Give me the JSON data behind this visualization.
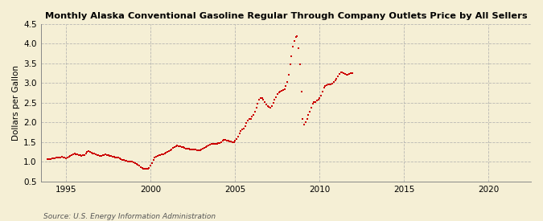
{
  "title": "Monthly Alaska Conventional Gasoline Regular Through Company Outlets Price by All Sellers",
  "ylabel": "Dollars per Gallon",
  "source": "Source: U.S. Energy Information Administration",
  "xlim": [
    1993.5,
    2022.5
  ],
  "ylim": [
    0.5,
    4.5
  ],
  "yticks": [
    0.5,
    1.0,
    1.5,
    2.0,
    2.5,
    3.0,
    3.5,
    4.0,
    4.5
  ],
  "xticks": [
    1995,
    2000,
    2005,
    2010,
    2015,
    2020
  ],
  "line_color": "#cc0000",
  "bg_color": "#f5efd5",
  "grid_color": "#aaaaaa",
  "data": [
    [
      1993.917,
      1.07
    ],
    [
      1994.0,
      1.07
    ],
    [
      1994.083,
      1.07
    ],
    [
      1994.167,
      1.08
    ],
    [
      1994.25,
      1.08
    ],
    [
      1994.333,
      1.09
    ],
    [
      1994.417,
      1.1
    ],
    [
      1994.5,
      1.1
    ],
    [
      1994.583,
      1.11
    ],
    [
      1994.667,
      1.12
    ],
    [
      1994.75,
      1.13
    ],
    [
      1994.833,
      1.12
    ],
    [
      1994.917,
      1.1
    ],
    [
      1995.0,
      1.09
    ],
    [
      1995.083,
      1.1
    ],
    [
      1995.167,
      1.13
    ],
    [
      1995.25,
      1.16
    ],
    [
      1995.333,
      1.18
    ],
    [
      1995.417,
      1.2
    ],
    [
      1995.5,
      1.21
    ],
    [
      1995.583,
      1.2
    ],
    [
      1995.667,
      1.19
    ],
    [
      1995.75,
      1.18
    ],
    [
      1995.833,
      1.17
    ],
    [
      1995.917,
      1.16
    ],
    [
      1996.0,
      1.17
    ],
    [
      1996.083,
      1.18
    ],
    [
      1996.167,
      1.22
    ],
    [
      1996.25,
      1.25
    ],
    [
      1996.333,
      1.27
    ],
    [
      1996.417,
      1.26
    ],
    [
      1996.5,
      1.24
    ],
    [
      1996.583,
      1.22
    ],
    [
      1996.667,
      1.21
    ],
    [
      1996.75,
      1.2
    ],
    [
      1996.833,
      1.18
    ],
    [
      1996.917,
      1.17
    ],
    [
      1997.0,
      1.16
    ],
    [
      1997.083,
      1.16
    ],
    [
      1997.167,
      1.17
    ],
    [
      1997.25,
      1.18
    ],
    [
      1997.333,
      1.19
    ],
    [
      1997.417,
      1.18
    ],
    [
      1997.5,
      1.17
    ],
    [
      1997.583,
      1.16
    ],
    [
      1997.667,
      1.15
    ],
    [
      1997.75,
      1.14
    ],
    [
      1997.833,
      1.13
    ],
    [
      1997.917,
      1.12
    ],
    [
      1998.0,
      1.11
    ],
    [
      1998.083,
      1.1
    ],
    [
      1998.167,
      1.08
    ],
    [
      1998.25,
      1.07
    ],
    [
      1998.333,
      1.05
    ],
    [
      1998.417,
      1.04
    ],
    [
      1998.5,
      1.03
    ],
    [
      1998.583,
      1.02
    ],
    [
      1998.667,
      1.01
    ],
    [
      1998.75,
      1.0
    ],
    [
      1998.833,
      1.0
    ],
    [
      1998.917,
      1.0
    ],
    [
      1999.0,
      0.99
    ],
    [
      1999.083,
      0.97
    ],
    [
      1999.167,
      0.95
    ],
    [
      1999.25,
      0.93
    ],
    [
      1999.333,
      0.9
    ],
    [
      1999.417,
      0.87
    ],
    [
      1999.5,
      0.85
    ],
    [
      1999.583,
      0.83
    ],
    [
      1999.667,
      0.82
    ],
    [
      1999.75,
      0.82
    ],
    [
      1999.833,
      0.83
    ],
    [
      1999.917,
      0.85
    ],
    [
      2000.0,
      0.9
    ],
    [
      2000.083,
      0.97
    ],
    [
      2000.167,
      1.05
    ],
    [
      2000.25,
      1.1
    ],
    [
      2000.333,
      1.13
    ],
    [
      2000.417,
      1.15
    ],
    [
      2000.5,
      1.17
    ],
    [
      2000.583,
      1.18
    ],
    [
      2000.667,
      1.19
    ],
    [
      2000.75,
      1.2
    ],
    [
      2000.833,
      1.22
    ],
    [
      2000.917,
      1.24
    ],
    [
      2001.0,
      1.26
    ],
    [
      2001.083,
      1.28
    ],
    [
      2001.167,
      1.3
    ],
    [
      2001.25,
      1.32
    ],
    [
      2001.333,
      1.35
    ],
    [
      2001.417,
      1.38
    ],
    [
      2001.5,
      1.4
    ],
    [
      2001.583,
      1.41
    ],
    [
      2001.667,
      1.4
    ],
    [
      2001.75,
      1.39
    ],
    [
      2001.833,
      1.38
    ],
    [
      2001.917,
      1.37
    ],
    [
      2002.0,
      1.35
    ],
    [
      2002.083,
      1.34
    ],
    [
      2002.167,
      1.33
    ],
    [
      2002.25,
      1.33
    ],
    [
      2002.333,
      1.32
    ],
    [
      2002.417,
      1.32
    ],
    [
      2002.5,
      1.32
    ],
    [
      2002.583,
      1.31
    ],
    [
      2002.667,
      1.31
    ],
    [
      2002.75,
      1.3
    ],
    [
      2002.833,
      1.3
    ],
    [
      2002.917,
      1.3
    ],
    [
      2003.0,
      1.31
    ],
    [
      2003.083,
      1.33
    ],
    [
      2003.167,
      1.36
    ],
    [
      2003.25,
      1.38
    ],
    [
      2003.333,
      1.4
    ],
    [
      2003.417,
      1.42
    ],
    [
      2003.5,
      1.44
    ],
    [
      2003.583,
      1.45
    ],
    [
      2003.667,
      1.46
    ],
    [
      2003.75,
      1.46
    ],
    [
      2003.833,
      1.46
    ],
    [
      2003.917,
      1.46
    ],
    [
      2004.0,
      1.47
    ],
    [
      2004.083,
      1.48
    ],
    [
      2004.167,
      1.5
    ],
    [
      2004.25,
      1.53
    ],
    [
      2004.333,
      1.55
    ],
    [
      2004.417,
      1.55
    ],
    [
      2004.5,
      1.54
    ],
    [
      2004.583,
      1.53
    ],
    [
      2004.667,
      1.52
    ],
    [
      2004.75,
      1.51
    ],
    [
      2004.833,
      1.5
    ],
    [
      2004.917,
      1.5
    ],
    [
      2005.0,
      1.53
    ],
    [
      2005.083,
      1.58
    ],
    [
      2005.167,
      1.65
    ],
    [
      2005.25,
      1.72
    ],
    [
      2005.333,
      1.78
    ],
    [
      2005.417,
      1.82
    ],
    [
      2005.5,
      1.85
    ],
    [
      2005.583,
      1.9
    ],
    [
      2005.667,
      1.98
    ],
    [
      2005.75,
      2.05
    ],
    [
      2005.833,
      2.08
    ],
    [
      2005.917,
      2.1
    ],
    [
      2006.0,
      2.15
    ],
    [
      2006.083,
      2.2
    ],
    [
      2006.167,
      2.28
    ],
    [
      2006.25,
      2.38
    ],
    [
      2006.333,
      2.48
    ],
    [
      2006.417,
      2.57
    ],
    [
      2006.5,
      2.62
    ],
    [
      2006.583,
      2.63
    ],
    [
      2006.667,
      2.58
    ],
    [
      2006.75,
      2.52
    ],
    [
      2006.833,
      2.45
    ],
    [
      2006.917,
      2.42
    ],
    [
      2007.0,
      2.4
    ],
    [
      2007.083,
      2.38
    ],
    [
      2007.167,
      2.42
    ],
    [
      2007.25,
      2.5
    ],
    [
      2007.333,
      2.58
    ],
    [
      2007.417,
      2.65
    ],
    [
      2007.5,
      2.72
    ],
    [
      2007.583,
      2.76
    ],
    [
      2007.667,
      2.78
    ],
    [
      2007.75,
      2.8
    ],
    [
      2007.833,
      2.82
    ],
    [
      2007.917,
      2.85
    ],
    [
      2008.0,
      2.92
    ],
    [
      2008.083,
      3.02
    ],
    [
      2008.167,
      3.22
    ],
    [
      2008.25,
      3.48
    ],
    [
      2008.333,
      3.68
    ],
    [
      2008.417,
      3.92
    ],
    [
      2008.5,
      4.08
    ],
    [
      2008.583,
      4.17
    ],
    [
      2008.667,
      4.2
    ],
    [
      2008.75,
      3.88
    ],
    [
      2008.833,
      3.48
    ],
    [
      2008.917,
      2.78
    ],
    [
      2009.0,
      2.08
    ],
    [
      2009.083,
      1.95
    ],
    [
      2009.167,
      2.0
    ],
    [
      2009.25,
      2.1
    ],
    [
      2009.333,
      2.2
    ],
    [
      2009.417,
      2.28
    ],
    [
      2009.5,
      2.38
    ],
    [
      2009.583,
      2.48
    ],
    [
      2009.667,
      2.52
    ],
    [
      2009.75,
      2.52
    ],
    [
      2009.833,
      2.55
    ],
    [
      2009.917,
      2.58
    ],
    [
      2010.0,
      2.62
    ],
    [
      2010.083,
      2.68
    ],
    [
      2010.167,
      2.78
    ],
    [
      2010.25,
      2.88
    ],
    [
      2010.333,
      2.93
    ],
    [
      2010.417,
      2.95
    ],
    [
      2010.5,
      2.96
    ],
    [
      2010.583,
      2.97
    ],
    [
      2010.667,
      2.97
    ],
    [
      2010.75,
      2.98
    ],
    [
      2010.833,
      3.02
    ],
    [
      2010.917,
      3.08
    ],
    [
      2011.0,
      3.12
    ],
    [
      2011.083,
      3.18
    ],
    [
      2011.167,
      3.23
    ],
    [
      2011.25,
      3.27
    ],
    [
      2011.333,
      3.27
    ],
    [
      2011.417,
      3.25
    ],
    [
      2011.5,
      3.24
    ],
    [
      2011.583,
      3.22
    ],
    [
      2011.667,
      3.22
    ],
    [
      2011.75,
      3.24
    ],
    [
      2011.833,
      3.26
    ],
    [
      2011.917,
      3.26
    ]
  ]
}
